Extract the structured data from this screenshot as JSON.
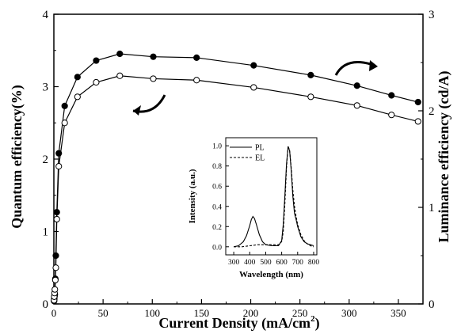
{
  "chart_data": [
    {
      "type": "scatter",
      "title": "",
      "xlabel": "Current Density (mA/cm",
      "xlabel_sup": "2",
      "xlabel_end": ")",
      "ylabel_left": "Quantum efficiency(%)",
      "ylabel_right": "Luminance efficiency (cd/A)",
      "xlim": [
        0,
        375
      ],
      "ylim_left": [
        0,
        4
      ],
      "ylim_right": [
        0,
        3
      ],
      "xticks": [
        "0",
        "50",
        "100",
        "150",
        "200",
        "250",
        "300",
        "350"
      ],
      "yticks_left": [
        "0",
        "1",
        "2",
        "3",
        "4"
      ],
      "yticks_right": [
        "0",
        "1",
        "2",
        "3"
      ],
      "series": [
        {
          "axis": "right",
          "marker": "filled-circle",
          "x": [
            0.2,
            0.4,
            0.7,
            1,
            1.5,
            2,
            3,
            5,
            11,
            24,
            43,
            67,
            101,
            145,
            203,
            261,
            308,
            343,
            370
          ],
          "y": [
            0.03,
            0.05,
            0.08,
            0.1,
            0.26,
            0.5,
            0.95,
            1.56,
            2.05,
            2.35,
            2.52,
            2.59,
            2.56,
            2.55,
            2.47,
            2.37,
            2.26,
            2.16,
            2.09
          ]
        },
        {
          "axis": "left",
          "marker": "open-circle",
          "x": [
            0.2,
            0.4,
            0.7,
            1,
            1.5,
            2,
            3,
            5,
            11,
            24,
            43,
            67,
            101,
            145,
            203,
            261,
            308,
            343,
            370
          ],
          "y": [
            0.05,
            0.1,
            0.15,
            0.2,
            0.33,
            0.5,
            1.17,
            1.9,
            2.5,
            2.86,
            3.06,
            3.15,
            3.11,
            3.09,
            2.99,
            2.86,
            2.74,
            2.61,
            2.52
          ]
        }
      ]
    },
    {
      "type": "line",
      "title": "",
      "xlabel": "Wavelength (nm)",
      "ylabel": "Intensity (a.u.)",
      "xlim": [
        250,
        820
      ],
      "ylim": [
        -0.08,
        1.08
      ],
      "xticks": [
        "300",
        "400",
        "500",
        "600",
        "700",
        "800"
      ],
      "yticks": [
        "0.0",
        "0.2",
        "0.4",
        "0.6",
        "0.8",
        "1.0"
      ],
      "legend": "top-left",
      "series": [
        {
          "name": "PL",
          "style": "solid",
          "x": [
            300,
            330,
            360,
            380,
            400,
            410,
            420,
            430,
            440,
            460,
            480,
            500,
            540,
            580,
            600,
            610,
            620,
            630,
            640,
            650,
            660,
            670,
            680,
            690,
            700,
            720,
            740,
            760,
            780,
            800
          ],
          "y": [
            0.0,
            0.01,
            0.05,
            0.11,
            0.21,
            0.27,
            0.3,
            0.28,
            0.23,
            0.12,
            0.05,
            0.02,
            0.01,
            0.01,
            0.06,
            0.22,
            0.5,
            0.82,
            0.99,
            0.95,
            0.75,
            0.5,
            0.33,
            0.27,
            0.2,
            0.1,
            0.05,
            0.03,
            0.02,
            0.01
          ]
        },
        {
          "name": "EL",
          "style": "dashed",
          "x": [
            300,
            350,
            400,
            450,
            500,
            540,
            580,
            600,
            610,
            620,
            630,
            640,
            650,
            660,
            670,
            680,
            690,
            700,
            720,
            740,
            760,
            780,
            800
          ],
          "y": [
            0.0,
            0.0,
            0.01,
            0.02,
            0.02,
            0.02,
            0.02,
            0.05,
            0.15,
            0.42,
            0.78,
            1.0,
            0.95,
            0.78,
            0.56,
            0.4,
            0.3,
            0.22,
            0.12,
            0.06,
            0.03,
            0.01,
            0.0
          ]
        }
      ]
    }
  ],
  "annotations": {
    "left_arrow": "curved-arrow-left",
    "right_arrow": "curved-arrow-right"
  }
}
